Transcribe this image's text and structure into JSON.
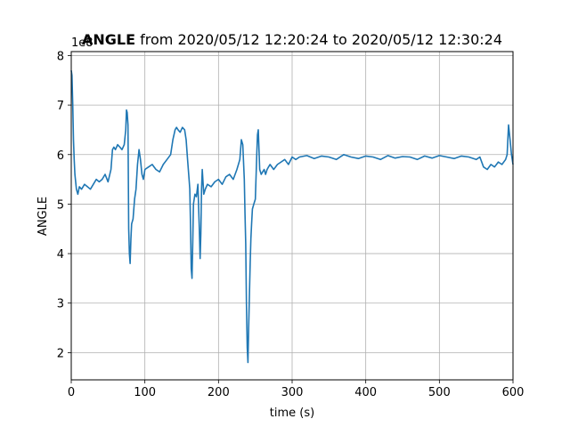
{
  "chart_data": {
    "type": "line",
    "title_bold": "ANGLE",
    "title_rest": " from 2020/05/12 12:20:24 to 2020/05/12 12:30:24",
    "xlabel": "time (s)",
    "ylabel": "ANGLE",
    "offset_label": "1e8",
    "xlim": [
      0,
      600
    ],
    "ylim": [
      1.45,
      8.08
    ],
    "xticks": [
      0,
      100,
      200,
      300,
      400,
      500,
      600
    ],
    "xtick_labels": [
      "0",
      "100",
      "200",
      "300",
      "400",
      "500",
      "600"
    ],
    "yticks": [
      2,
      3,
      4,
      5,
      6,
      7,
      8
    ],
    "ytick_labels": [
      "2",
      "3",
      "4",
      "5",
      "6",
      "7",
      "8"
    ],
    "grid": true,
    "line_color": "#1f77b4",
    "series": [
      {
        "x": [
          0,
          1,
          2,
          3,
          4,
          5,
          7,
          9,
          11,
          14,
          18,
          22,
          26,
          30,
          34,
          38,
          42,
          46,
          50,
          54,
          56,
          58,
          60,
          63,
          66,
          69,
          72,
          74,
          75,
          76,
          77,
          78,
          79,
          80,
          81,
          82,
          84,
          86,
          88,
          90,
          92,
          94,
          96,
          98,
          100,
          105,
          110,
          115,
          120,
          125,
          130,
          135,
          138,
          141,
          143,
          145,
          148,
          151,
          154,
          156,
          158,
          160,
          161,
          162,
          163,
          164,
          165,
          166,
          168,
          170,
          172,
          174,
          175,
          176,
          177,
          178,
          180,
          182,
          185,
          190,
          195,
          200,
          205,
          210,
          215,
          220,
          225,
          229,
          231,
          233,
          235,
          236,
          237,
          238,
          239,
          240,
          241,
          242,
          243,
          244,
          245,
          246,
          248,
          250,
          252,
          253,
          254,
          255,
          256,
          258,
          260,
          262,
          264,
          266,
          268,
          270,
          275,
          280,
          285,
          290,
          295,
          300,
          305,
          310,
          320,
          330,
          340,
          350,
          360,
          370,
          380,
          390,
          400,
          410,
          420,
          430,
          440,
          450,
          460,
          470,
          480,
          490,
          500,
          510,
          520,
          530,
          540,
          550,
          555,
          560,
          565,
          570,
          575,
          580,
          585,
          590,
          592,
          594,
          596,
          598,
          600
        ],
        "y": [
          7.7,
          7.6,
          7.0,
          6.3,
          5.9,
          5.6,
          5.3,
          5.2,
          5.35,
          5.3,
          5.4,
          5.35,
          5.3,
          5.4,
          5.5,
          5.45,
          5.5,
          5.6,
          5.45,
          5.7,
          6.1,
          6.15,
          6.1,
          6.2,
          6.15,
          6.1,
          6.2,
          6.5,
          6.9,
          6.85,
          6.6,
          4.5,
          4.0,
          3.8,
          4.3,
          4.6,
          4.7,
          5.1,
          5.3,
          5.8,
          6.1,
          5.9,
          5.6,
          5.5,
          5.7,
          5.75,
          5.8,
          5.7,
          5.65,
          5.8,
          5.9,
          6.0,
          6.3,
          6.5,
          6.55,
          6.5,
          6.45,
          6.55,
          6.5,
          6.3,
          5.9,
          5.5,
          5.3,
          4.6,
          3.7,
          3.5,
          4.2,
          5.0,
          5.2,
          5.15,
          5.4,
          4.5,
          3.9,
          4.4,
          5.3,
          5.7,
          5.2,
          5.3,
          5.4,
          5.35,
          5.45,
          5.5,
          5.4,
          5.55,
          5.6,
          5.5,
          5.7,
          5.9,
          6.3,
          6.2,
          5.5,
          4.8,
          4.2,
          3.0,
          2.1,
          1.8,
          2.5,
          3.2,
          3.8,
          4.3,
          4.6,
          4.9,
          5.0,
          5.1,
          6.0,
          6.4,
          6.5,
          6.1,
          5.7,
          5.6,
          5.65,
          5.7,
          5.6,
          5.7,
          5.75,
          5.8,
          5.7,
          5.8,
          5.85,
          5.9,
          5.8,
          5.95,
          5.9,
          5.95,
          5.98,
          5.92,
          5.97,
          5.95,
          5.9,
          6.0,
          5.95,
          5.92,
          5.97,
          5.95,
          5.9,
          5.98,
          5.93,
          5.96,
          5.95,
          5.9,
          5.97,
          5.93,
          5.98,
          5.95,
          5.92,
          5.97,
          5.95,
          5.9,
          5.95,
          5.75,
          5.7,
          5.8,
          5.75,
          5.85,
          5.8,
          5.9,
          6.0,
          6.6,
          6.3,
          6.0,
          5.8
        ]
      }
    ]
  }
}
